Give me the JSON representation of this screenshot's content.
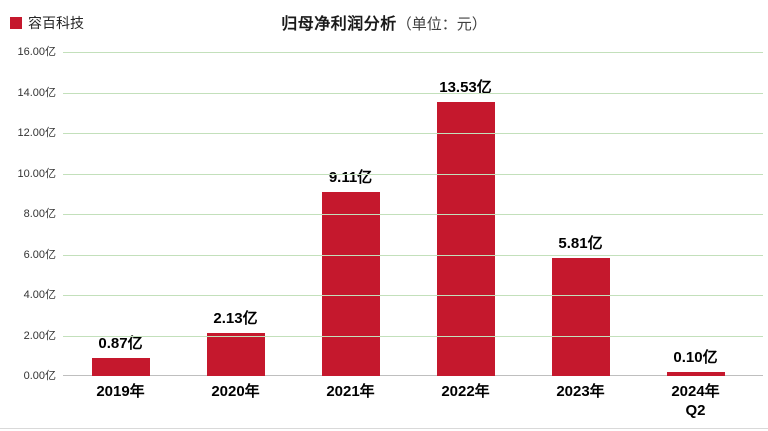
{
  "chart_data": {
    "type": "bar",
    "title": "归母净利润分析",
    "unit_suffix": "（单位：元）",
    "legend": {
      "label": "容百科技"
    },
    "legend_position": "top-left",
    "categories": [
      "2019年",
      "2020年",
      "2021年",
      "2022年",
      "2023年",
      "2024年\nQ2"
    ],
    "values": [
      0.87,
      2.13,
      9.11,
      13.53,
      5.81,
      0.1
    ],
    "value_labels": [
      "0.87亿",
      "2.13亿",
      "9.11亿",
      "13.53亿",
      "5.81亿",
      "0.10亿"
    ],
    "y_tick_labels": [
      "16.00亿",
      "14.00亿",
      "12.00亿",
      "10.00亿",
      "8.00亿",
      "6.00亿",
      "4.00亿",
      "2.00亿",
      "0.00亿"
    ],
    "ylim": [
      0,
      16
    ],
    "grid": true,
    "colors": {
      "bar": "#c5182d",
      "gridline": "#c3e0bb",
      "axis_line": "#bfbfbf",
      "tick_text": "#333333",
      "label_text": "#000000",
      "title_text": "#1a1a1a",
      "unit_text": "#404040",
      "background": "#ffffff",
      "bottom_border": "#d9d9d9"
    }
  }
}
